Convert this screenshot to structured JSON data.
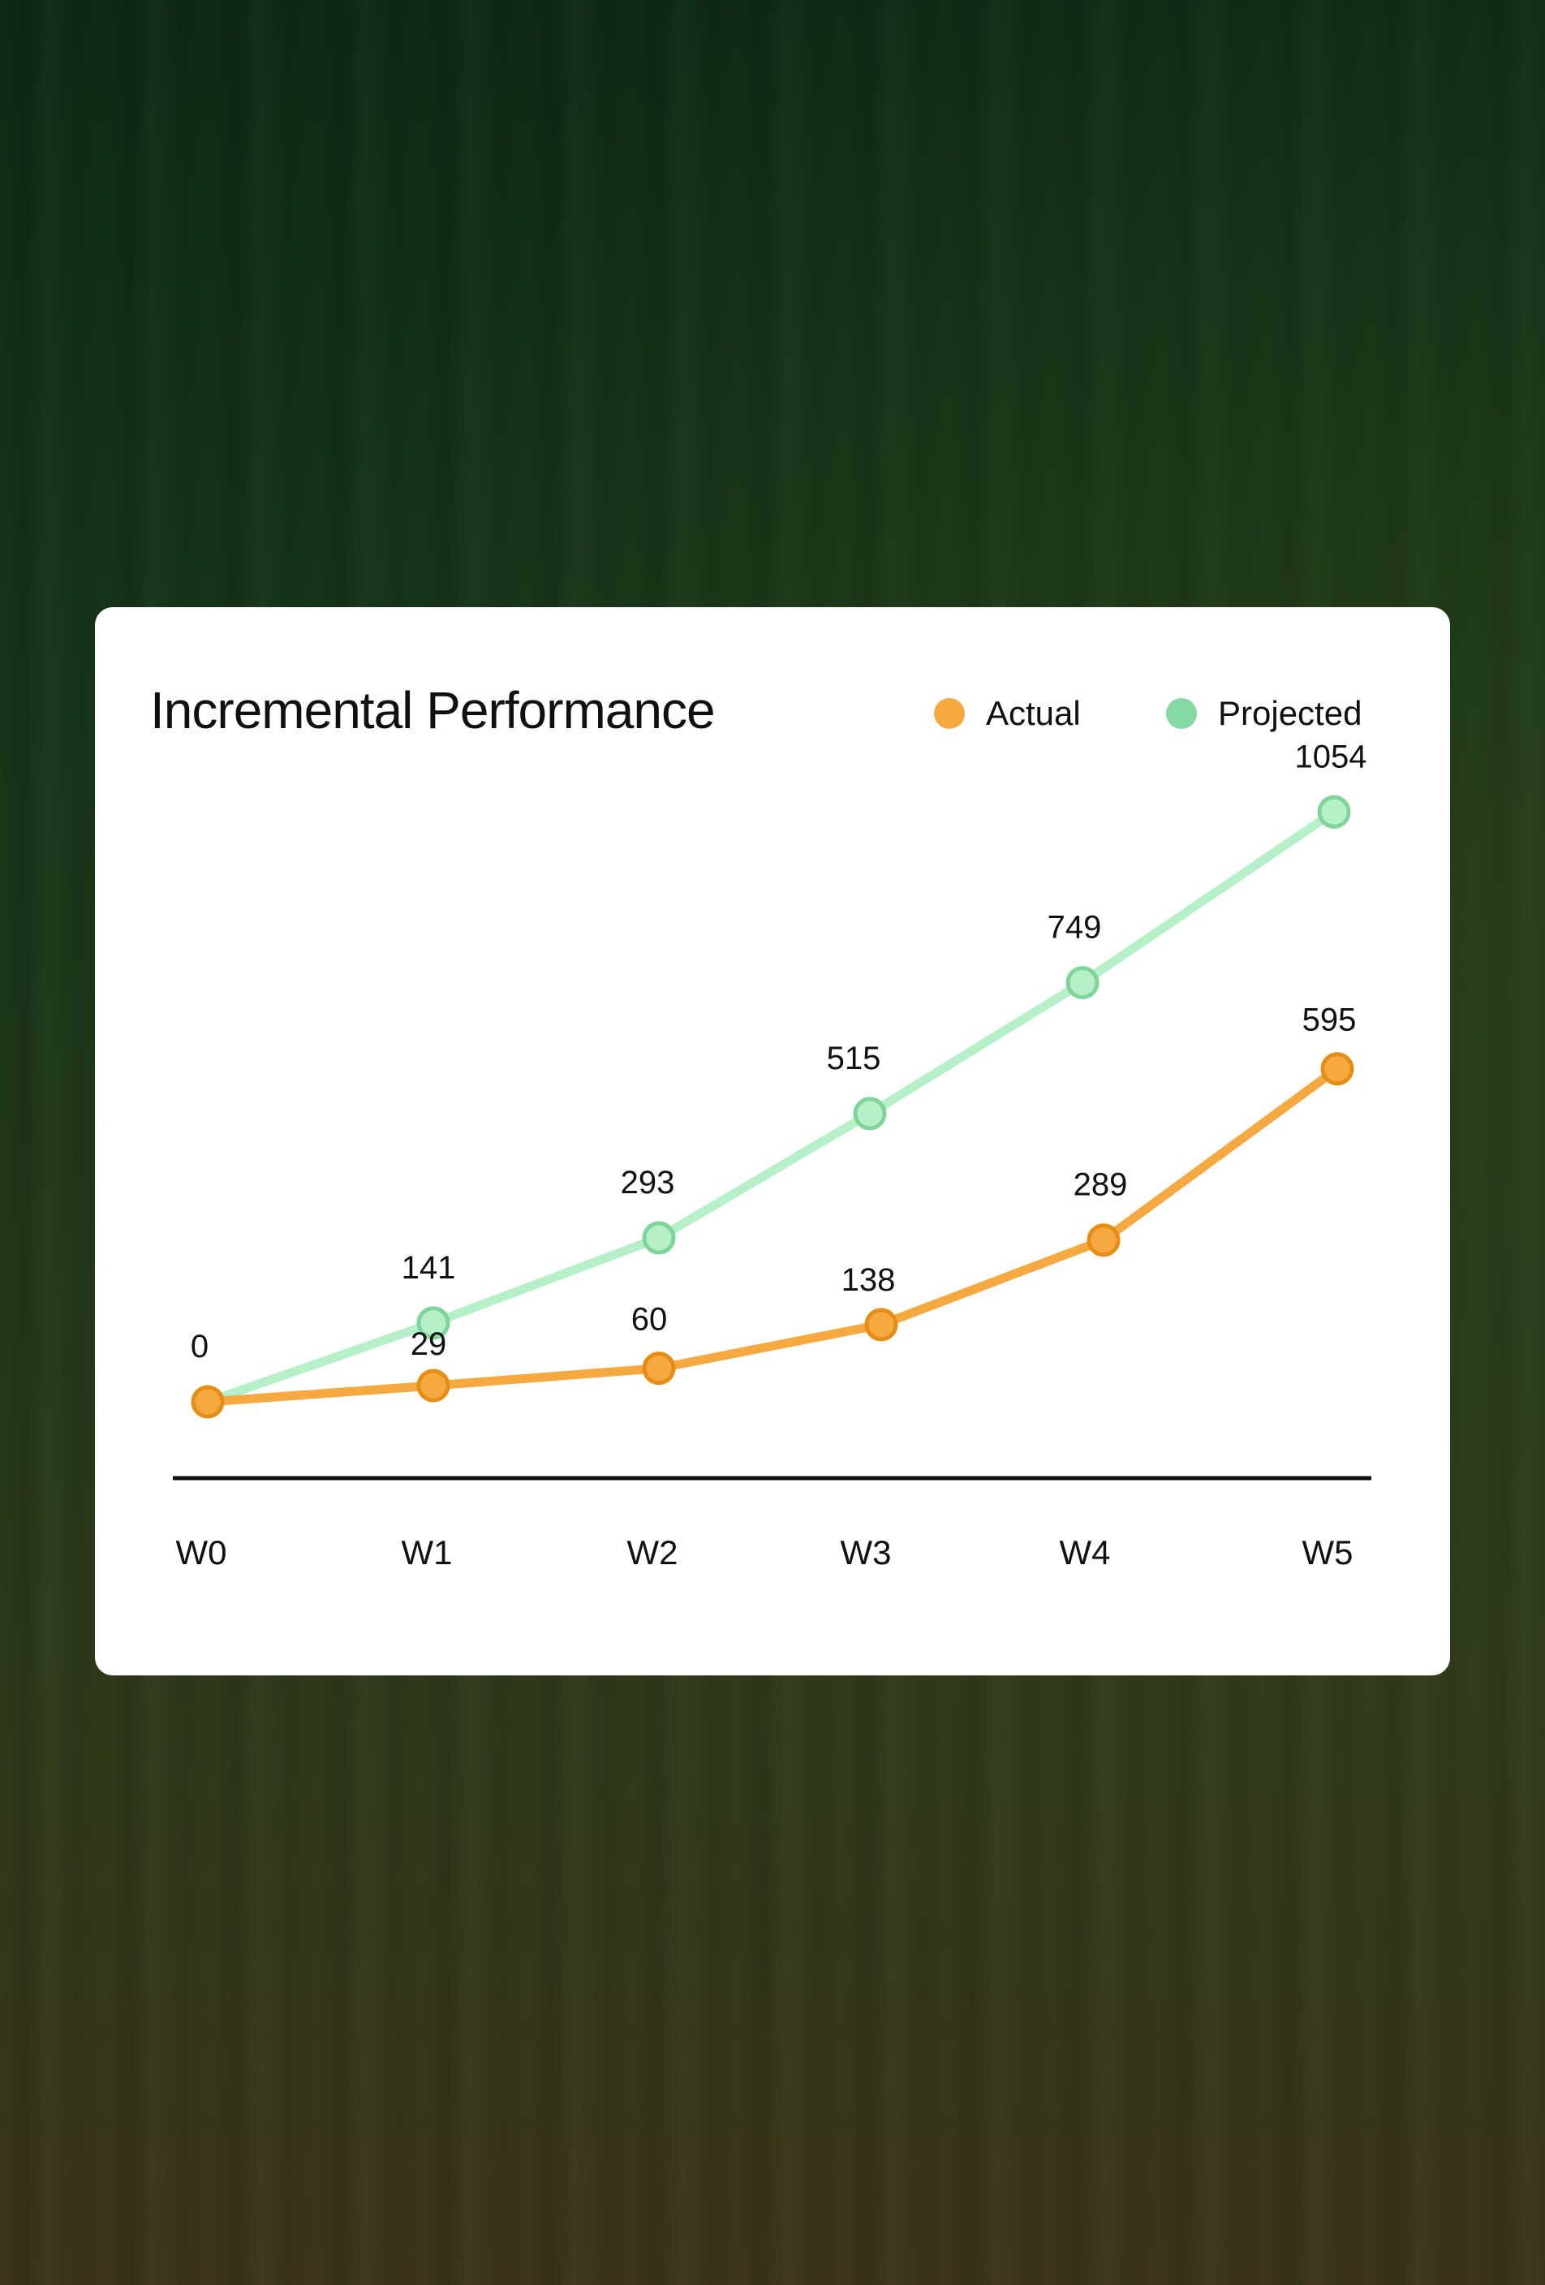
{
  "chart_data": {
    "type": "line",
    "title": "Incremental Performance",
    "categories": [
      "W0",
      "W1",
      "W2",
      "W3",
      "W4",
      "W5"
    ],
    "series": [
      {
        "name": "Projected",
        "values": [
          0,
          141,
          293,
          515,
          749,
          1054
        ],
        "color": "#b5f0c8",
        "marker_stroke": "#7fd49a"
      },
      {
        "name": "Actual",
        "values": [
          0,
          29,
          60,
          138,
          289,
          595
        ],
        "color": "#f5a940",
        "marker_stroke": "#e58d14"
      }
    ],
    "legend": {
      "position": "top-right",
      "items": [
        {
          "label": "Actual",
          "color": "#f5a940"
        },
        {
          "label": "Projected",
          "color": "#84d8a2"
        }
      ]
    },
    "xlabel": "",
    "ylabel": "",
    "ylim": [
      0,
      1100
    ]
  }
}
